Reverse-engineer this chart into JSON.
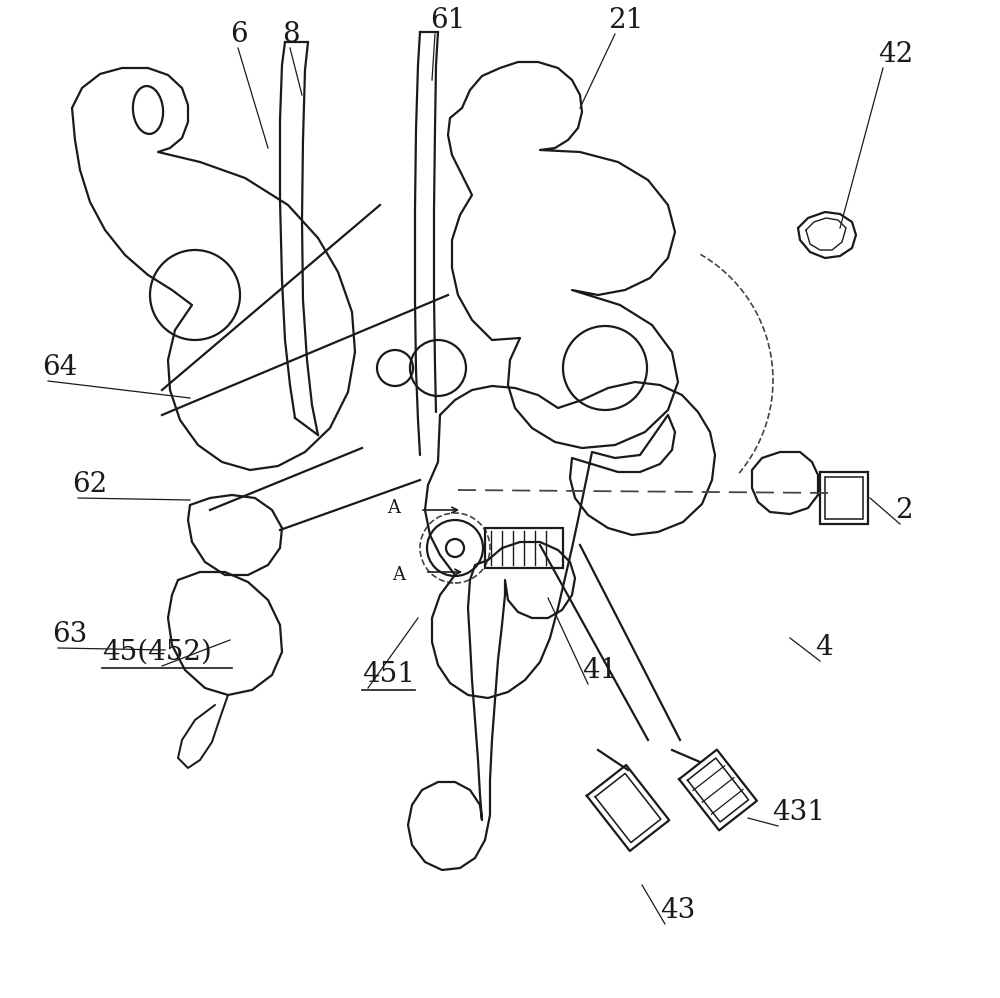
{
  "background_color": "#ffffff",
  "line_color": "#1a1a1a",
  "dashed_color": "#444444",
  "figsize": [
    10.0,
    9.98
  ],
  "dpi": 100,
  "labels": [
    [
      "6",
      230,
      42
    ],
    [
      "8",
      282,
      42
    ],
    [
      "61",
      430,
      28
    ],
    [
      "21",
      608,
      28
    ],
    [
      "42",
      878,
      62
    ],
    [
      "64",
      42,
      375
    ],
    [
      "62",
      72,
      492
    ],
    [
      "63",
      52,
      642
    ],
    [
      "45(452)",
      102,
      660
    ],
    [
      "451",
      362,
      682
    ],
    [
      "41",
      582,
      678
    ],
    [
      "4",
      815,
      655
    ],
    [
      "2",
      895,
      518
    ],
    [
      "431",
      772,
      820
    ],
    [
      "43",
      660,
      918
    ]
  ],
  "leader_lines": [
    [
      238,
      48,
      268,
      148
    ],
    [
      290,
      48,
      302,
      95
    ],
    [
      435,
      34,
      432,
      80
    ],
    [
      615,
      34,
      580,
      108
    ],
    [
      883,
      68,
      840,
      228
    ],
    [
      48,
      381,
      190,
      398
    ],
    [
      78,
      498,
      190,
      500
    ],
    [
      58,
      648,
      165,
      650
    ],
    [
      162,
      666,
      230,
      640
    ],
    [
      368,
      688,
      418,
      618
    ],
    [
      588,
      684,
      548,
      598
    ],
    [
      820,
      661,
      790,
      638
    ],
    [
      900,
      524,
      870,
      498
    ],
    [
      778,
      826,
      748,
      818
    ],
    [
      665,
      924,
      642,
      885
    ]
  ]
}
